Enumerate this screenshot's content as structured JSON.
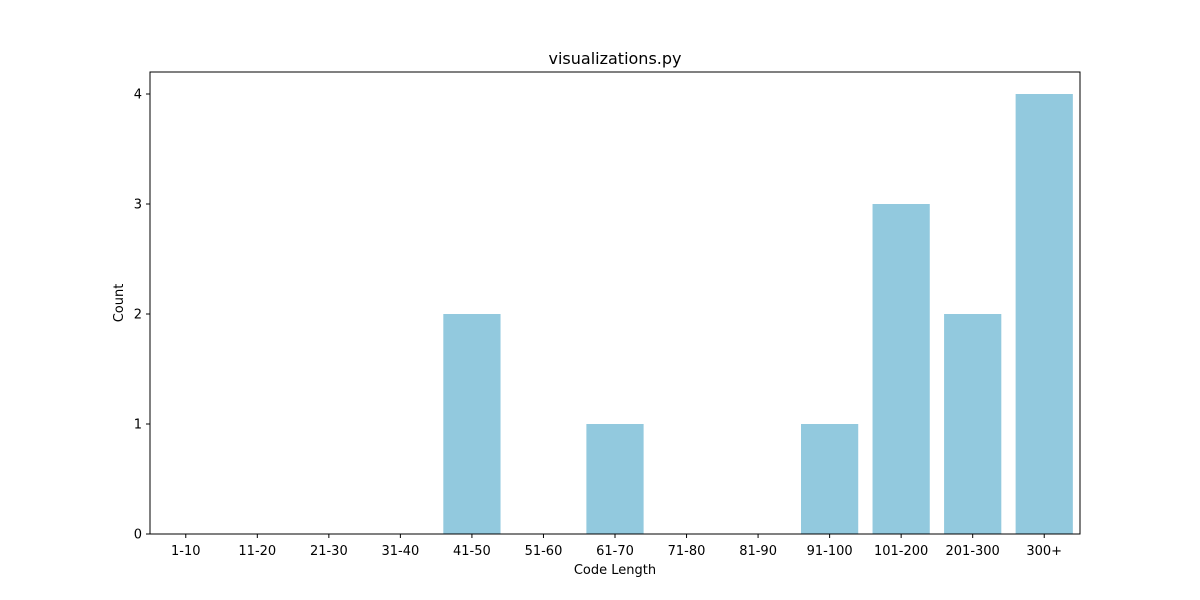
{
  "chart_data": {
    "type": "bar",
    "title": "visualizations.py",
    "xlabel": "Code Length",
    "ylabel": "Count",
    "categories": [
      "1-10",
      "11-20",
      "21-30",
      "31-40",
      "41-50",
      "51-60",
      "61-70",
      "71-80",
      "81-90",
      "91-100",
      "101-200",
      "201-300",
      "300+"
    ],
    "values": [
      0,
      0,
      0,
      0,
      2,
      0,
      1,
      0,
      0,
      1,
      3,
      2,
      4
    ],
    "ylim": [
      0,
      4.2
    ],
    "yticks": [
      0,
      1,
      2,
      3,
      4
    ],
    "grid": false,
    "bar_color": "#92c9de"
  }
}
